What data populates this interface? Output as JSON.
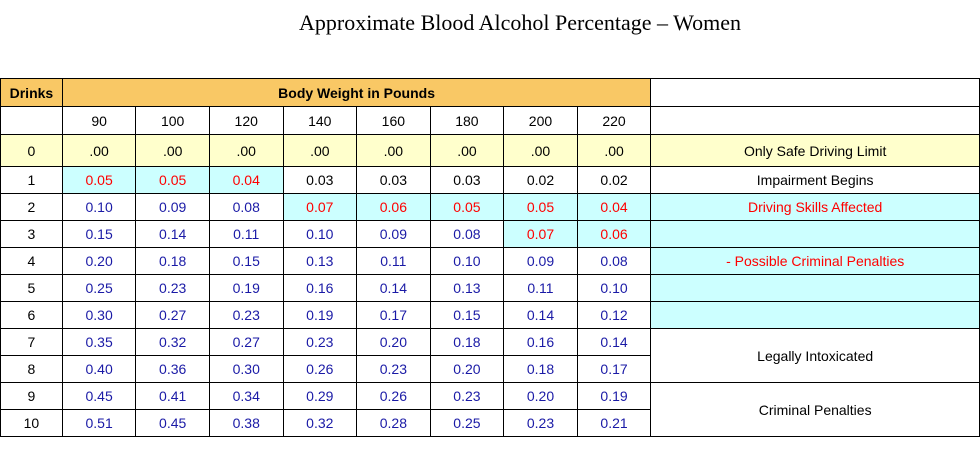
{
  "title": "Approximate  Blood  Alcohol  Percentage  – Women",
  "header": {
    "drinks_label": "Drinks",
    "weight_label": "Body Weight in Pounds"
  },
  "weights": [
    "90",
    "100",
    "120",
    "140",
    "160",
    "180",
    "200",
    "220"
  ],
  "rows": [
    {
      "drinks": "0",
      "values": [
        ".00",
        ".00",
        ".00",
        ".00",
        ".00",
        ".00",
        ".00",
        ".00"
      ]
    },
    {
      "drinks": "1",
      "values": [
        "0.05",
        "0.05",
        "0.04",
        "0.03",
        "0.03",
        "0.03",
        "0.02",
        "0.02"
      ]
    },
    {
      "drinks": "2",
      "values": [
        "0.10",
        "0.09",
        "0.08",
        "0.07",
        "0.06",
        "0.05",
        "0.05",
        "0.04"
      ]
    },
    {
      "drinks": "3",
      "values": [
        "0.15",
        "0.14",
        "0.11",
        "0.10",
        "0.09",
        "0.08",
        "0.07",
        "0.06"
      ]
    },
    {
      "drinks": "4",
      "values": [
        "0.20",
        "0.18",
        "0.15",
        "0.13",
        "0.11",
        "0.10",
        "0.09",
        "0.08"
      ]
    },
    {
      "drinks": "5",
      "values": [
        "0.25",
        "0.23",
        "0.19",
        "0.16",
        "0.14",
        "0.13",
        "0.11",
        "0.10"
      ]
    },
    {
      "drinks": "6",
      "values": [
        "0.30",
        "0.27",
        "0.23",
        "0.19",
        "0.17",
        "0.15",
        "0.14",
        "0.12"
      ]
    },
    {
      "drinks": "7",
      "values": [
        "0.35",
        "0.32",
        "0.27",
        "0.23",
        "0.20",
        "0.18",
        "0.16",
        "0.14"
      ]
    },
    {
      "drinks": "8",
      "values": [
        "0.40",
        "0.36",
        "0.30",
        "0.26",
        "0.23",
        "0.20",
        "0.18",
        "0.17"
      ]
    },
    {
      "drinks": "9",
      "values": [
        "0.45",
        "0.41",
        "0.34",
        "0.29",
        "0.26",
        "0.23",
        "0.20",
        "0.19"
      ]
    },
    {
      "drinks": "10",
      "values": [
        "0.51",
        "0.45",
        "0.38",
        "0.32",
        "0.28",
        "0.25",
        "0.23",
        "0.21"
      ]
    }
  ],
  "notes": {
    "safe_limit": "Only Safe Driving Limit",
    "impairment": "Impairment Begins",
    "skills": "Driving Skills Affected",
    "possible_penalties": "- Possible Criminal Penalties",
    "intoxicated": "Legally  Intoxicated",
    "criminal": "Criminal  Penalties"
  },
  "colors": {
    "header_bg": "#f9c865",
    "safe_bg": "#ffffcc",
    "impair_bg": "#ccffff",
    "impair_text": "#ff0000",
    "value_text": "#1a1aa6"
  }
}
